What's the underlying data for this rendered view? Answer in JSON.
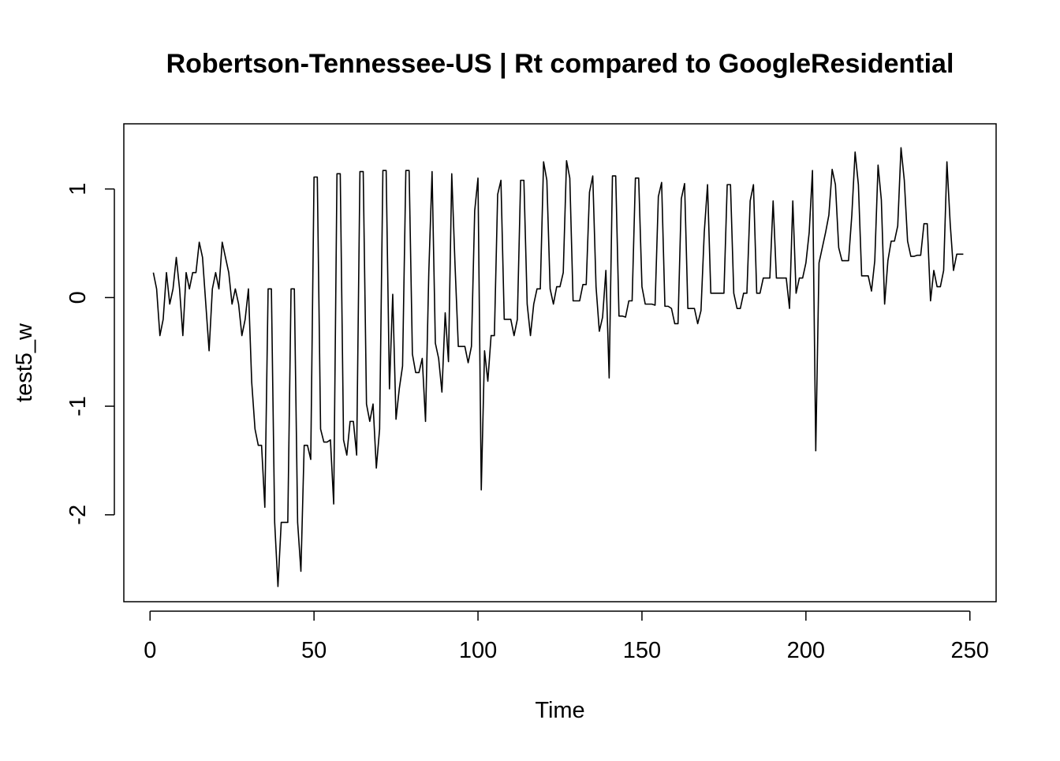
{
  "chart_data": {
    "type": "line",
    "title": "Robertson-Tennessee-US | Rt compared to GoogleResidential",
    "xlabel": "Time",
    "ylabel": "test5_w",
    "xlim": [
      -8,
      258
    ],
    "ylim": [
      -2.8,
      1.6
    ],
    "x_ticks": [
      0,
      50,
      100,
      150,
      200,
      250
    ],
    "y_ticks": [
      -2,
      -1,
      0,
      1
    ],
    "grid": false,
    "legend": "none",
    "line_color": "#000000",
    "series": [
      {
        "x_start": 1,
        "x_step": 1,
        "values": [
          0.23,
          0.08,
          -0.35,
          -0.2,
          0.23,
          -0.06,
          0.08,
          0.37,
          0.08,
          -0.35,
          0.23,
          0.08,
          0.23,
          0.23,
          0.51,
          0.37,
          -0.06,
          -0.49,
          0.08,
          0.23,
          0.08,
          0.51,
          0.37,
          0.23,
          -0.06,
          0.08,
          -0.06,
          -0.35,
          -0.2,
          0.08,
          -0.78,
          -1.21,
          -1.36,
          -1.36,
          -1.93,
          0.08,
          0.08,
          -2.07,
          -2.66,
          -2.07,
          -2.07,
          -2.07,
          0.08,
          0.08,
          -2.07,
          -2.52,
          -1.36,
          -1.36,
          -1.49,
          1.11,
          1.11,
          -1.21,
          -1.33,
          -1.33,
          -1.31,
          -1.9,
          1.14,
          1.14,
          -1.31,
          -1.45,
          -1.14,
          -1.14,
          -1.45,
          1.16,
          1.16,
          -0.98,
          -1.14,
          -0.98,
          -1.57,
          -1.21,
          1.17,
          1.17,
          -0.84,
          0.03,
          -1.12,
          -0.84,
          -0.63,
          1.17,
          1.17,
          -0.52,
          -0.69,
          -0.69,
          -0.56,
          -1.14,
          0.23,
          1.16,
          -0.42,
          -0.56,
          -0.87,
          -0.14,
          -0.59,
          1.14,
          0.3,
          -0.45,
          -0.45,
          -0.45,
          -0.6,
          -0.45,
          0.8,
          1.1,
          -1.77,
          -0.49,
          -0.77,
          -0.35,
          -0.35,
          0.95,
          1.08,
          -0.2,
          -0.2,
          -0.2,
          -0.35,
          -0.2,
          1.08,
          1.08,
          -0.06,
          -0.35,
          -0.06,
          0.08,
          0.08,
          1.25,
          1.08,
          0.08,
          -0.06,
          0.1,
          0.1,
          0.23,
          1.26,
          1.1,
          -0.03,
          -0.03,
          -0.03,
          0.12,
          0.12,
          0.97,
          1.12,
          0.1,
          -0.31,
          -0.18,
          0.25,
          -0.74,
          1.12,
          1.12,
          -0.17,
          -0.17,
          -0.18,
          -0.03,
          -0.03,
          1.1,
          1.1,
          0.1,
          -0.06,
          -0.06,
          -0.06,
          -0.07,
          0.93,
          1.06,
          -0.08,
          -0.08,
          -0.1,
          -0.24,
          -0.24,
          0.91,
          1.05,
          -0.1,
          -0.1,
          -0.1,
          -0.24,
          -0.12,
          0.6,
          1.04,
          0.04,
          0.04,
          0.04,
          0.04,
          0.04,
          1.04,
          1.04,
          0.04,
          -0.1,
          -0.1,
          0.04,
          0.04,
          0.89,
          1.04,
          0.04,
          0.04,
          0.18,
          0.18,
          0.18,
          0.89,
          0.18,
          0.18,
          0.18,
          0.18,
          -0.1,
          0.89,
          0.04,
          0.18,
          0.18,
          0.32,
          0.6,
          1.17,
          -1.41,
          0.32,
          0.46,
          0.6,
          0.76,
          1.18,
          1.04,
          0.46,
          0.34,
          0.34,
          0.34,
          0.76,
          1.34,
          1.04,
          0.2,
          0.2,
          0.2,
          0.06,
          0.34,
          1.22,
          0.9,
          -0.06,
          0.34,
          0.52,
          0.52,
          0.66,
          1.38,
          1.08,
          0.52,
          0.38,
          0.38,
          0.39,
          0.39,
          0.68,
          0.68,
          -0.03,
          0.25,
          0.1,
          0.1,
          0.25,
          1.25,
          0.68,
          0.25,
          0.4,
          0.4,
          0.4
        ]
      }
    ]
  }
}
